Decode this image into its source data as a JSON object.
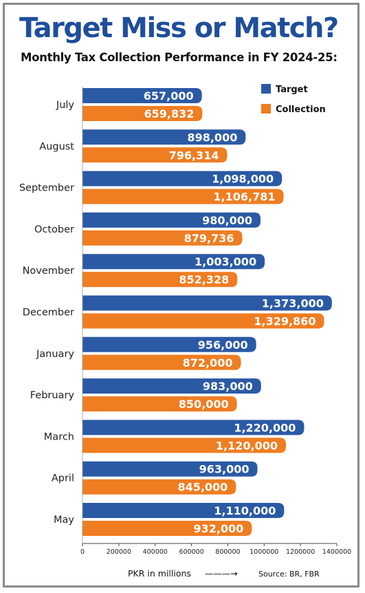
{
  "title": "Target Miss or Match?",
  "subtitle": "Monthly Tax Collection Performance in FY 2024-25:",
  "source": "Source: BR, FBR",
  "colors": {
    "target": "#2b5aa5",
    "collection": "#ef7d22",
    "title": "#1f4e9c"
  },
  "chart_data": {
    "type": "bar",
    "orientation": "horizontal",
    "title": "Target Miss or Match?",
    "subtitle": "Monthly Tax Collection Performance in FY 2024-25:",
    "xlabel": "PKR in millions",
    "ylabel": "",
    "categories": [
      "July",
      "August",
      "September",
      "October",
      "November",
      "December",
      "January",
      "February",
      "March",
      "April",
      "May"
    ],
    "series": [
      {
        "name": "Target",
        "values": [
          657000,
          898000,
          1098000,
          980000,
          1003000,
          1373000,
          956000,
          983000,
          1220000,
          963000,
          1110000
        ],
        "labels": [
          "657,000",
          "898,000",
          "1,098,000",
          "980,000",
          "1,003,000",
          "1,373,000",
          "956,000",
          "983,000",
          "1,220,000",
          "963,000",
          "1,110,000"
        ]
      },
      {
        "name": "Collection",
        "values": [
          659832,
          796314,
          1106781,
          879736,
          852328,
          1329860,
          872000,
          850000,
          1120000,
          845000,
          932000
        ],
        "labels": [
          "659,832",
          "796,314",
          "1,106,781",
          "879,736",
          "852,328",
          "1,329,860",
          "872,000",
          "850,000",
          "1,120,000",
          "845,000",
          "932,000"
        ]
      }
    ],
    "xlim": [
      0,
      1400000
    ],
    "ticks": [
      0,
      200000,
      400000,
      600000,
      800000,
      1000000,
      1200000,
      1400000
    ],
    "tick_labels": [
      "0",
      "200000",
      "400000",
      "600000",
      "800000",
      "1000000",
      "1200000",
      "1400000"
    ],
    "legend": {
      "position": "top-right",
      "entries": [
        "Target",
        "Collection"
      ]
    },
    "grid": false
  }
}
